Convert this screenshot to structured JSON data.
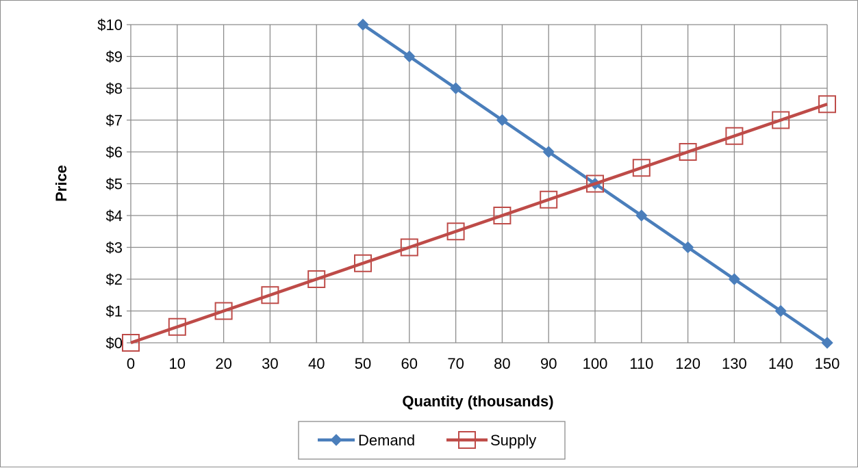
{
  "chart_data": {
    "type": "line",
    "title": "",
    "xlabel": "Quantity (thousands)",
    "ylabel": "Price",
    "xlim": [
      0,
      150
    ],
    "ylim": [
      0,
      10
    ],
    "x_ticks": [
      "0",
      "10",
      "20",
      "30",
      "40",
      "50",
      "60",
      "70",
      "80",
      "90",
      "100",
      "110",
      "120",
      "130",
      "140",
      "150"
    ],
    "y_ticks": [
      "$0",
      "$1",
      "$2",
      "$3",
      "$4",
      "$5",
      "$6",
      "$7",
      "$8",
      "$9",
      "$10"
    ],
    "grid": true,
    "legend_position": "bottom",
    "series": [
      {
        "name": "Demand",
        "color": "#4a7ebb",
        "marker": "diamond",
        "x": [
          50,
          60,
          70,
          80,
          90,
          100,
          110,
          120,
          130,
          140,
          150
        ],
        "y": [
          10,
          9,
          8,
          7,
          6,
          5,
          4,
          3,
          2,
          1,
          0
        ]
      },
      {
        "name": "Supply",
        "color": "#be4b48",
        "marker": "square-open",
        "x": [
          0,
          10,
          20,
          30,
          40,
          50,
          60,
          70,
          80,
          90,
          100,
          110,
          120,
          130,
          140,
          150
        ],
        "y": [
          0,
          0.5,
          1,
          1.5,
          2,
          2.5,
          3,
          3.5,
          4,
          4.5,
          5,
          5.5,
          6,
          6.5,
          7,
          7.5
        ]
      }
    ]
  }
}
